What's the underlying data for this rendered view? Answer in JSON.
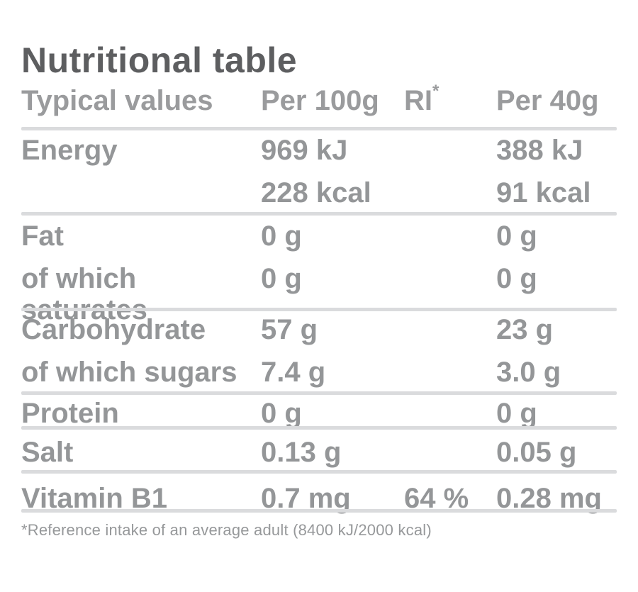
{
  "title": "Nutritional table",
  "table": {
    "header": {
      "col1": "Typical values",
      "col2": "Per 100g",
      "col3": "RI",
      "col3_marker": "*",
      "col4": "Per 40g"
    },
    "rows": {
      "energy_kj": {
        "label": "Energy",
        "per100": "969 kJ",
        "ri": "",
        "per40": "388 kJ"
      },
      "energy_kcal": {
        "label": "",
        "per100": "228 kcal",
        "ri": "",
        "per40": "91 kcal"
      },
      "fat": {
        "label": "Fat",
        "per100": "0 g",
        "ri": "",
        "per40": "0 g"
      },
      "saturates": {
        "label": "of which saturates",
        "per100": "0 g",
        "ri": "",
        "per40": "0 g"
      },
      "carbohydrate": {
        "label": "Carbohydrate",
        "per100": "57 g",
        "ri": "",
        "per40": "23 g"
      },
      "sugars": {
        "label": "of which sugars",
        "per100": "7.4 g",
        "ri": "",
        "per40": "3.0 g"
      },
      "protein": {
        "label": "Protein",
        "per100": "0 g",
        "ri": "",
        "per40": "0 g"
      },
      "salt": {
        "label": "Salt",
        "per100": "0.13 g",
        "ri": "",
        "per40": "0.05 g"
      },
      "vitamin_b1": {
        "label": "Vitamin B1",
        "per100": "0.7 mg",
        "ri": "64 %",
        "per40": "0.28 mg"
      }
    },
    "footnote": "*Reference intake of an average adult (8400 kJ/2000 kcal)"
  },
  "colors": {
    "background": "#ffffff",
    "title_text": "#5d5e60",
    "table_text": "#949698",
    "divider": "#dadbdd"
  }
}
